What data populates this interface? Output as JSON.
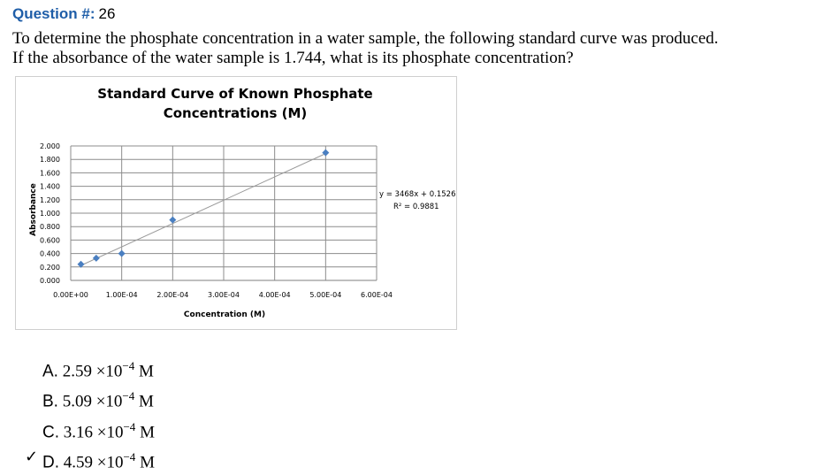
{
  "question": {
    "label": "Question #:",
    "number": "26",
    "line1": "To determine the phosphate concentration in a water sample, the following standard curve was produced.",
    "line2": "If the absorbance of the water sample is 1.744, what is its phosphate concentration?"
  },
  "chart_data": {
    "type": "scatter",
    "title_line1": "Standard Curve of Known Phosphate",
    "title_line2": "Concentrations (M)",
    "xlabel": "Concentration (M)",
    "ylabel": "Absorbance",
    "xlim": [
      0,
      0.0006
    ],
    "ylim": [
      0,
      2.0
    ],
    "x_tick_labels": [
      "0.00E+00",
      "1.00E-04",
      "2.00E-04",
      "3.00E-04",
      "4.00E-04",
      "5.00E-04",
      "6.00E-04"
    ],
    "y_tick_labels": [
      "0.000",
      "0.200",
      "0.400",
      "0.600",
      "0.800",
      "1.000",
      "1.200",
      "1.400",
      "1.600",
      "1.800",
      "2.000"
    ],
    "grid": true,
    "series": [
      {
        "x": [
          2e-05,
          5e-05,
          0.0001,
          0.0002,
          0.0005
        ],
        "y": [
          0.24,
          0.33,
          0.4,
          0.9,
          1.9
        ]
      }
    ],
    "trendline": {
      "slope": 3468,
      "intercept": 0.1526
    },
    "equation": "y = 3468x + 0.1526",
    "r_squared": "R² = 0.9881",
    "marker_color": "#4a7fc1"
  },
  "answers": [
    {
      "letter": "A.",
      "value": "2.59 ×10",
      "exp": "−4",
      "unit": " M",
      "check": ""
    },
    {
      "letter": "B.",
      "value": "5.09 ×10",
      "exp": "−4",
      "unit": " M",
      "check": ""
    },
    {
      "letter": "C.",
      "value": "3.16 ×10",
      "exp": "−4",
      "unit": " M",
      "check": ""
    },
    {
      "letter": "D.",
      "value": "4.59 ×10",
      "exp": "−4",
      "unit": " M",
      "check": "✓"
    }
  ]
}
